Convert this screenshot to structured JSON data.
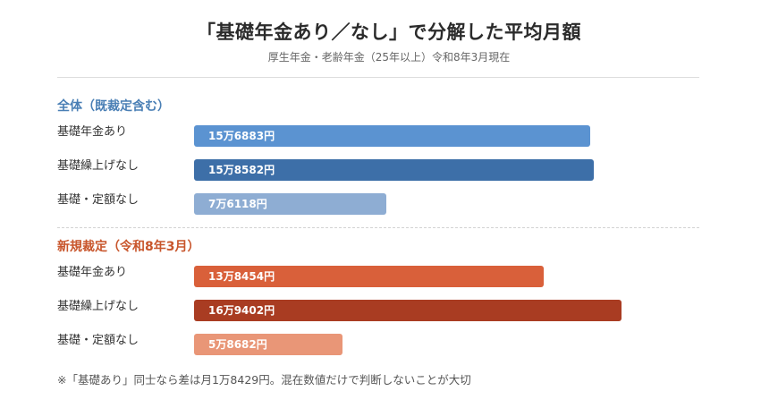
{
  "title": "「基礎年金あり／なし」で分解した平均月額",
  "subtitle": "厚生年金・老齢年金（25年以上）令和8年3月現在",
  "note": "※「基礎あり」同士なら差は月1万8429円。混在数値だけで判断しないことが大切",
  "chart_data": {
    "type": "bar",
    "orientation": "horizontal",
    "unit": "円",
    "groups": [
      {
        "name": "全体（既裁定含む）",
        "color": "#4a7fb5",
        "rows": [
          {
            "label": "基礎年金あり",
            "value": 156883,
            "value_label": "15万6883円",
            "color": "#5b93d1"
          },
          {
            "label": "基礎繰上げなし",
            "value": 158582,
            "value_label": "15万8582円",
            "color": "#3d6fa8"
          },
          {
            "label": "基礎・定額なし",
            "value": 76118,
            "value_label": "7万6118円",
            "color": "#8eadd3"
          }
        ]
      },
      {
        "name": "新規裁定（令和8年3月）",
        "color": "#c8552b",
        "rows": [
          {
            "label": "基礎年金あり",
            "value": 138454,
            "value_label": "13万8454円",
            "color": "#d9603a"
          },
          {
            "label": "基礎繰上げなし",
            "value": 169402,
            "value_label": "16万9402円",
            "color": "#a93c22"
          },
          {
            "label": "基礎・定額なし",
            "value": 58682,
            "value_label": "5万8682円",
            "color": "#e99677"
          }
        ]
      }
    ]
  }
}
